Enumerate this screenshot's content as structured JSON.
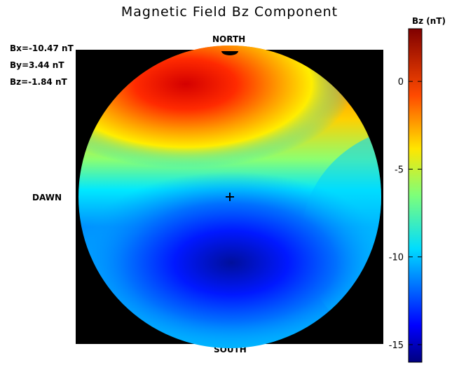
{
  "title": "Magnetic Field Bz Component",
  "imf": {
    "bx": "Bx=-10.47 nT",
    "by": "By=3.44 nT",
    "bz": "Bz=-1.84 nT"
  },
  "directions": {
    "north": "NORTH",
    "south": "SOUTH",
    "dawn": "DAWN"
  },
  "colorbar": {
    "title": "Bz (nT)",
    "ticks": [
      "0",
      "-5",
      "-10",
      "-15"
    ],
    "tick_values": [
      0,
      -5,
      -10,
      -15
    ],
    "min": -16,
    "max": 3,
    "colormap": "jet"
  },
  "chart_data": {
    "type": "heatmap",
    "title": "Magnetic Field Bz Component",
    "description_of_field": "circular polar map",
    "colorbar_label": "Bz (nT)",
    "value_range": [
      -16,
      3
    ],
    "colorbar_ticks": [
      0,
      -5,
      -10,
      -15
    ],
    "center_marker": "+"
  }
}
